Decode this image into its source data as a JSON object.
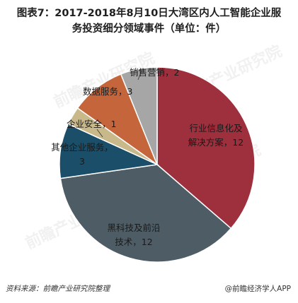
{
  "title": {
    "line1": "图表7：2017-2018年8月10日大湾区内人工智能企业服",
    "line2": "务投资细分领域事件（单位：件）"
  },
  "chart_data": {
    "type": "pie",
    "slices": [
      {
        "label": "行业信息化及解决方案",
        "label_lines": [
          "行业信息化及",
          "解决方案，12"
        ],
        "value": 12,
        "color": "#9e2f3c"
      },
      {
        "label": "黑科技及前沿技术",
        "label_lines": [
          "黑科技及前沿",
          "技术，12"
        ],
        "value": 12,
        "color": "#4e5d65"
      },
      {
        "label": "其他企业服务",
        "label_lines": [
          "其他企业服务，",
          "3"
        ],
        "value": 3,
        "color": "#1a4e69"
      },
      {
        "label": "企业安全",
        "label_lines": [
          "企业安全，1"
        ],
        "value": 1,
        "color": "#c9b98a"
      },
      {
        "label": "数据服务",
        "label_lines": [
          "数据服务，3"
        ],
        "value": 3,
        "color": "#c5653b"
      },
      {
        "label": "销售营销",
        "label_lines": [
          "销售营销，2"
        ],
        "value": 2,
        "color": "#a6a6a6"
      }
    ]
  },
  "footer": {
    "source": "资料来源：前瞻产业研究院整理",
    "brand": "@前瞻经济学人APP"
  },
  "watermark": "前瞻产业研究院"
}
